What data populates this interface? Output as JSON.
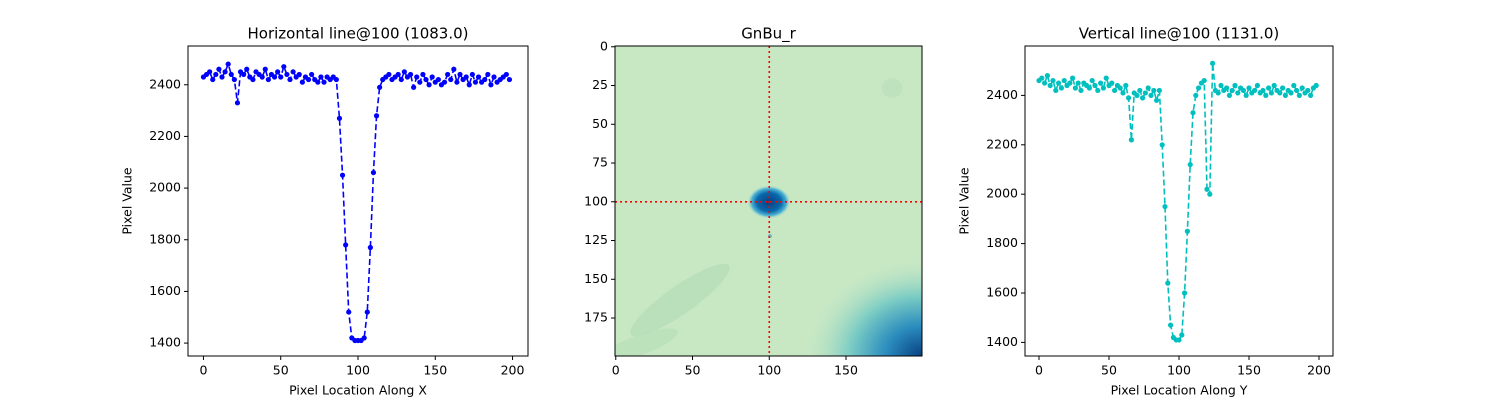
{
  "chart_data": [
    {
      "type": "line",
      "title": "Horizontal line@100 (1083.0)",
      "xlabel": "Pixel Location Along X",
      "ylabel": "Pixel Value",
      "color": "#0000ff",
      "xlim": [
        -10,
        210
      ],
      "ylim": [
        1350,
        2550
      ],
      "xticks": [
        0,
        50,
        100,
        150,
        200
      ],
      "yticks": [
        1400,
        1600,
        1800,
        2000,
        2200,
        2400
      ],
      "x": [
        0,
        2,
        4,
        6,
        8,
        10,
        12,
        14,
        16,
        18,
        20,
        22,
        24,
        26,
        28,
        30,
        32,
        34,
        36,
        38,
        40,
        42,
        44,
        46,
        48,
        50,
        52,
        54,
        56,
        58,
        60,
        62,
        64,
        66,
        68,
        70,
        72,
        74,
        76,
        78,
        80,
        82,
        84,
        86,
        88,
        90,
        92,
        94,
        96,
        98,
        100,
        102,
        104,
        106,
        108,
        110,
        112,
        114,
        116,
        118,
        120,
        122,
        124,
        126,
        128,
        130,
        132,
        134,
        136,
        138,
        140,
        142,
        144,
        146,
        148,
        150,
        152,
        154,
        156,
        158,
        160,
        162,
        164,
        166,
        168,
        170,
        172,
        174,
        176,
        178,
        180,
        182,
        184,
        186,
        188,
        190,
        192,
        194,
        196,
        198
      ],
      "values": [
        2430,
        2440,
        2450,
        2420,
        2440,
        2460,
        2430,
        2450,
        2480,
        2440,
        2420,
        2330,
        2450,
        2440,
        2460,
        2430,
        2420,
        2450,
        2440,
        2430,
        2460,
        2420,
        2440,
        2430,
        2450,
        2430,
        2470,
        2440,
        2420,
        2450,
        2430,
        2440,
        2410,
        2430,
        2420,
        2440,
        2420,
        2410,
        2430,
        2410,
        2430,
        2420,
        2430,
        2420,
        2270,
        2050,
        1780,
        1520,
        1420,
        1410,
        1410,
        1410,
        1420,
        1520,
        1770,
        2060,
        2280,
        2390,
        2420,
        2430,
        2440,
        2420,
        2430,
        2440,
        2420,
        2450,
        2430,
        2440,
        2390,
        2430,
        2410,
        2440,
        2420,
        2400,
        2430,
        2410,
        2420,
        2400,
        2410,
        2440,
        2420,
        2460,
        2410,
        2440,
        2420,
        2430,
        2400,
        2440,
        2410,
        2430,
        2410,
        2420,
        2440,
        2400,
        2430,
        2410,
        2420,
        2430,
        2440,
        2420
      ]
    },
    {
      "type": "image",
      "title": "GnBu_r",
      "xlim": [
        -0.5,
        199.5
      ],
      "ylim": [
        199.5,
        -0.5
      ],
      "xticks": [
        0,
        50,
        100,
        150
      ],
      "yticks": [
        0,
        25,
        50,
        75,
        100,
        125,
        150,
        175
      ],
      "vline": 100,
      "hline": 100,
      "crosshair_color": "#ff0000"
    },
    {
      "type": "line",
      "title": "Vertical line@100 (1131.0)",
      "xlabel": "Pixel Location Along Y",
      "ylabel": "Pixel Value",
      "color": "#00bfbf",
      "xlim": [
        -10,
        210
      ],
      "ylim": [
        1345,
        2600
      ],
      "xticks": [
        0,
        50,
        100,
        150,
        200
      ],
      "yticks": [
        1400,
        1600,
        1800,
        2000,
        2200,
        2400
      ],
      "x": [
        0,
        2,
        4,
        6,
        8,
        10,
        12,
        14,
        16,
        18,
        20,
        22,
        24,
        26,
        28,
        30,
        32,
        34,
        36,
        38,
        40,
        42,
        44,
        46,
        48,
        50,
        52,
        54,
        56,
        58,
        60,
        62,
        64,
        66,
        68,
        70,
        72,
        74,
        76,
        78,
        80,
        82,
        84,
        86,
        88,
        90,
        92,
        94,
        96,
        98,
        100,
        102,
        104,
        106,
        108,
        110,
        112,
        114,
        116,
        118,
        120,
        122,
        124,
        126,
        128,
        130,
        132,
        134,
        136,
        138,
        140,
        142,
        144,
        146,
        148,
        150,
        152,
        154,
        156,
        158,
        160,
        162,
        164,
        166,
        168,
        170,
        172,
        174,
        176,
        178,
        180,
        182,
        184,
        186,
        188,
        190,
        192,
        194,
        196,
        198
      ],
      "values": [
        2460,
        2470,
        2450,
        2480,
        2440,
        2460,
        2420,
        2450,
        2430,
        2460,
        2440,
        2450,
        2470,
        2430,
        2450,
        2420,
        2450,
        2440,
        2430,
        2460,
        2440,
        2420,
        2450,
        2430,
        2470,
        2440,
        2450,
        2420,
        2440,
        2430,
        2410,
        2440,
        2390,
        2220,
        2410,
        2400,
        2420,
        2390,
        2410,
        2430,
        2400,
        2420,
        2380,
        2420,
        2200,
        1950,
        1640,
        1470,
        1420,
        1410,
        1410,
        1430,
        1600,
        1850,
        2120,
        2330,
        2400,
        2430,
        2450,
        2460,
        2020,
        2000,
        2530,
        2420,
        2410,
        2440,
        2420,
        2430,
        2400,
        2420,
        2440,
        2410,
        2430,
        2420,
        2400,
        2430,
        2410,
        2420,
        2440,
        2410,
        2420,
        2400,
        2430,
        2410,
        2440,
        2420,
        2410,
        2430,
        2400,
        2420,
        2410,
        2440,
        2420,
        2400,
        2430,
        2410,
        2420,
        2400,
        2430,
        2440
      ]
    }
  ]
}
